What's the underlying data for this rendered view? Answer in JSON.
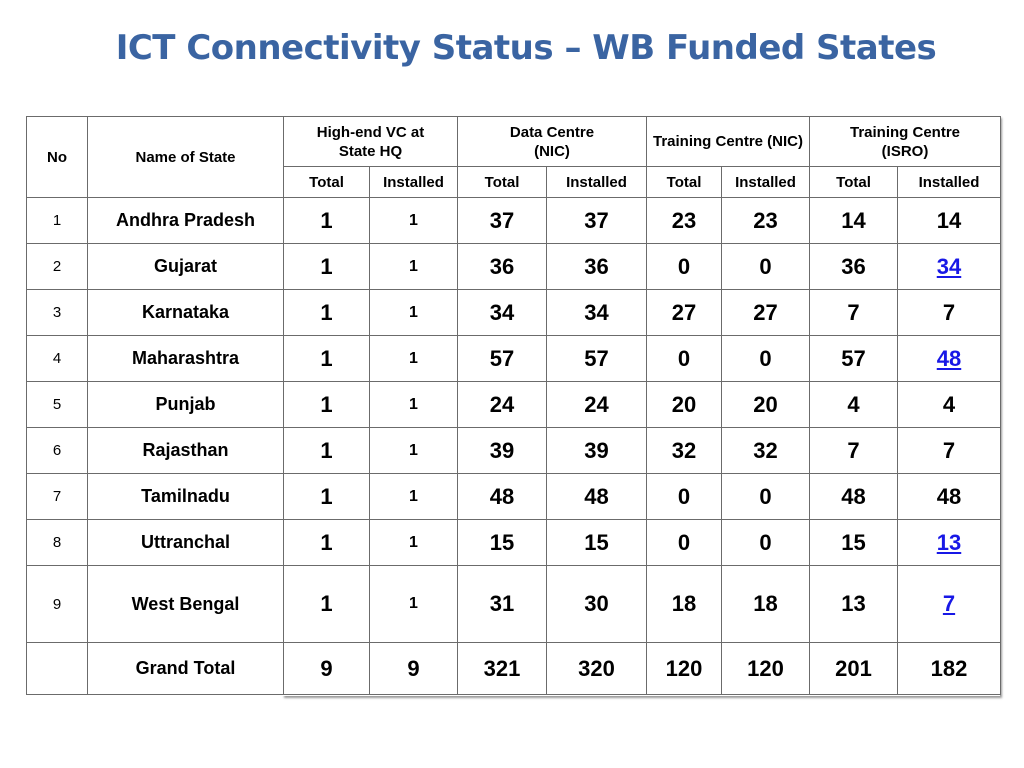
{
  "title": "ICT Connectivity Status – WB Funded States",
  "table": {
    "headers": {
      "no": "No",
      "name": "Name of State",
      "groups": [
        "High-end VC at State HQ",
        "Data Centre (NIC)",
        "Training Centre (NIC)",
        "Training Centre (ISRO)"
      ],
      "total": "Total",
      "installed": "Installed"
    },
    "rows": [
      {
        "no": "1",
        "name": "Andhra Pradesh",
        "vc_total": "1",
        "vc_installed": "1",
        "dc_total": "37",
        "dc_installed": "37",
        "tcn_total": "23",
        "tcn_installed": "23",
        "tci_total": "14",
        "tci_installed": "14"
      },
      {
        "no": "2",
        "name": "Gujarat",
        "vc_total": "1",
        "vc_installed": "1",
        "dc_total": "36",
        "dc_installed": "36",
        "tcn_total": "0",
        "tcn_installed": "0",
        "tci_total": "36",
        "tci_installed": "34"
      },
      {
        "no": "3",
        "name": "Karnataka",
        "vc_total": "1",
        "vc_installed": "1",
        "dc_total": "34",
        "dc_installed": "34",
        "tcn_total": "27",
        "tcn_installed": "27",
        "tci_total": "7",
        "tci_installed": "7"
      },
      {
        "no": "4",
        "name": "Maharashtra",
        "vc_total": "1",
        "vc_installed": "1",
        "dc_total": "57",
        "dc_installed": "57",
        "tcn_total": "0",
        "tcn_installed": "0",
        "tci_total": "57",
        "tci_installed": "48"
      },
      {
        "no": "5",
        "name": "Punjab",
        "vc_total": "1",
        "vc_installed": "1",
        "dc_total": "24",
        "dc_installed": "24",
        "tcn_total": "20",
        "tcn_installed": "20",
        "tci_total": "4",
        "tci_installed": "4"
      },
      {
        "no": "6",
        "name": "Rajasthan",
        "vc_total": "1",
        "vc_installed": "1",
        "dc_total": "39",
        "dc_installed": "39",
        "tcn_total": "32",
        "tcn_installed": "32",
        "tci_total": "7",
        "tci_installed": "7"
      },
      {
        "no": "7",
        "name": "Tamilnadu",
        "vc_total": "1",
        "vc_installed": "1",
        "dc_total": "48",
        "dc_installed": "48",
        "tcn_total": "0",
        "tcn_installed": "0",
        "tci_total": "48",
        "tci_installed": "48"
      },
      {
        "no": "8",
        "name": "Uttranchal",
        "vc_total": "1",
        "vc_installed": "1",
        "dc_total": "15",
        "dc_installed": "15",
        "tcn_total": "0",
        "tcn_installed": "0",
        "tci_total": "15",
        "tci_installed": "13"
      },
      {
        "no": "9",
        "name": "West Bengal",
        "vc_total": "1",
        "vc_installed": "1",
        "dc_total": "31",
        "dc_installed": "30",
        "tcn_total": "18",
        "tcn_installed": "18",
        "tci_total": "13",
        "tci_installed": "7"
      }
    ],
    "grand_total": {
      "label": "Grand Total",
      "vc_total": "9",
      "vc_installed": "9",
      "dc_total": "321",
      "dc_installed": "320",
      "tcn_total": "120",
      "tcn_installed": "120",
      "tci_total": "201",
      "tci_installed": "182"
    }
  },
  "colors": {
    "title": "#3a64a2",
    "link": "#1818e6",
    "border": "#6b6b6b"
  }
}
